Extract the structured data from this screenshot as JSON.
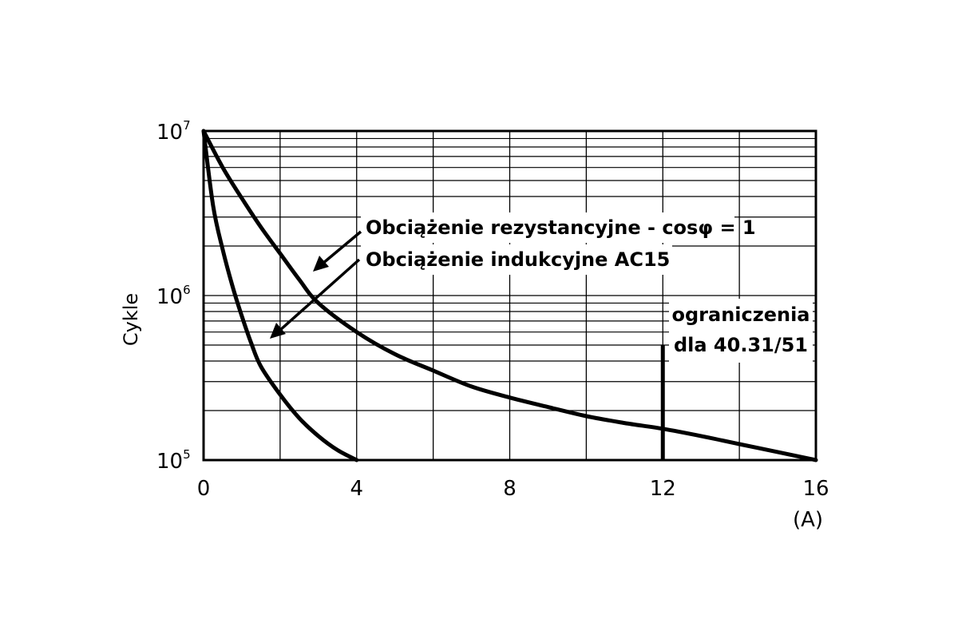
{
  "chart_data": {
    "type": "line",
    "ylabel": "Cykle",
    "xunit": "(A)",
    "x_ticks": [
      "0",
      "4",
      "8",
      "12",
      "16"
    ],
    "y_ticks": [
      {
        "base": "10",
        "exp": "5"
      },
      {
        "base": "10",
        "exp": "6"
      },
      {
        "base": "10",
        "exp": "7"
      }
    ],
    "xlim": [
      0,
      16
    ],
    "ylim": [
      100000,
      10000000
    ],
    "yscale": "log",
    "grid": true,
    "series": [
      {
        "name": "Obciążenie rezystancyjne - cosφ = 1",
        "x": [
          0,
          0.5,
          1,
          1.5,
          2,
          2.5,
          3,
          4,
          5,
          6,
          7,
          8,
          9,
          10,
          11,
          12,
          13,
          14,
          15,
          16
        ],
        "y": [
          10000000,
          6000000,
          3900000,
          2600000,
          1800000,
          1250000,
          900000,
          600000,
          440000,
          350000,
          280000,
          240000,
          210000,
          185000,
          168000,
          155000,
          140000,
          125000,
          112000,
          100000
        ]
      },
      {
        "name": "Obciążenie indukcyjne AC15",
        "x": [
          0,
          0.25,
          0.5,
          0.75,
          1,
          1.25,
          1.5,
          2,
          2.5,
          3,
          3.5,
          4
        ],
        "y": [
          10000000,
          3500000,
          1900000,
          1150000,
          750000,
          510000,
          370000,
          250000,
          180000,
          140000,
          115000,
          100000
        ]
      }
    ],
    "limit": {
      "x": 12,
      "y_top": 500000,
      "label_lines": [
        "ograniczenia",
        "dla 40.31/51"
      ]
    }
  }
}
